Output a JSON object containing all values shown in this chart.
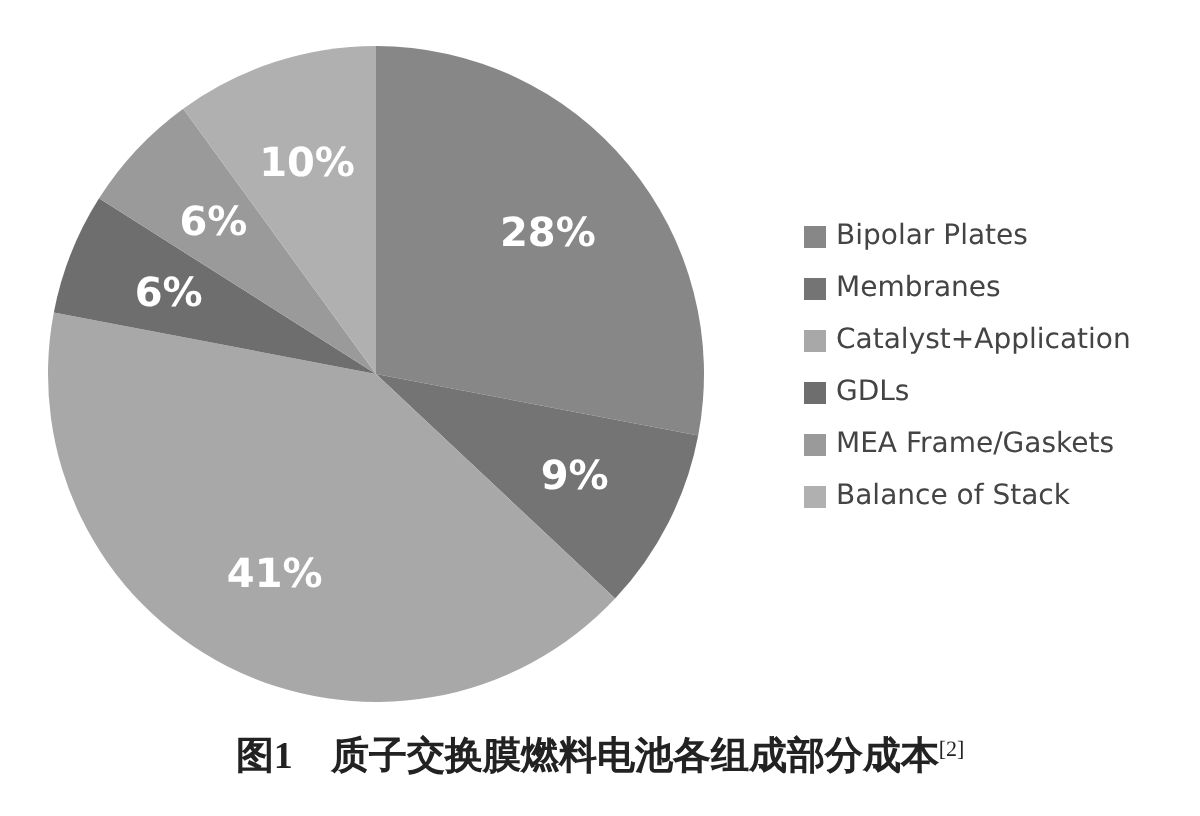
{
  "chart_data": {
    "type": "pie",
    "title": "图1　质子交换膜燃料电池各组成部分成本$^{[2]}$",
    "categories": [
      "Bipolar Plates",
      "Membranes",
      "Catalyst+Application",
      "GDLs",
      "MEA Frame/Gaskets",
      "Balance of Stack"
    ],
    "values": [
      28,
      9,
      41,
      6,
      6,
      10
    ],
    "value_labels": [
      "28%",
      "9%",
      "41%",
      "6%",
      "6%",
      "10%"
    ],
    "colors": [
      "#878787",
      "#747474",
      "#a8a8a8",
      "#6e6e6e",
      "#9a9a9a",
      "#b0b0b0"
    ],
    "legend": "right"
  }
}
